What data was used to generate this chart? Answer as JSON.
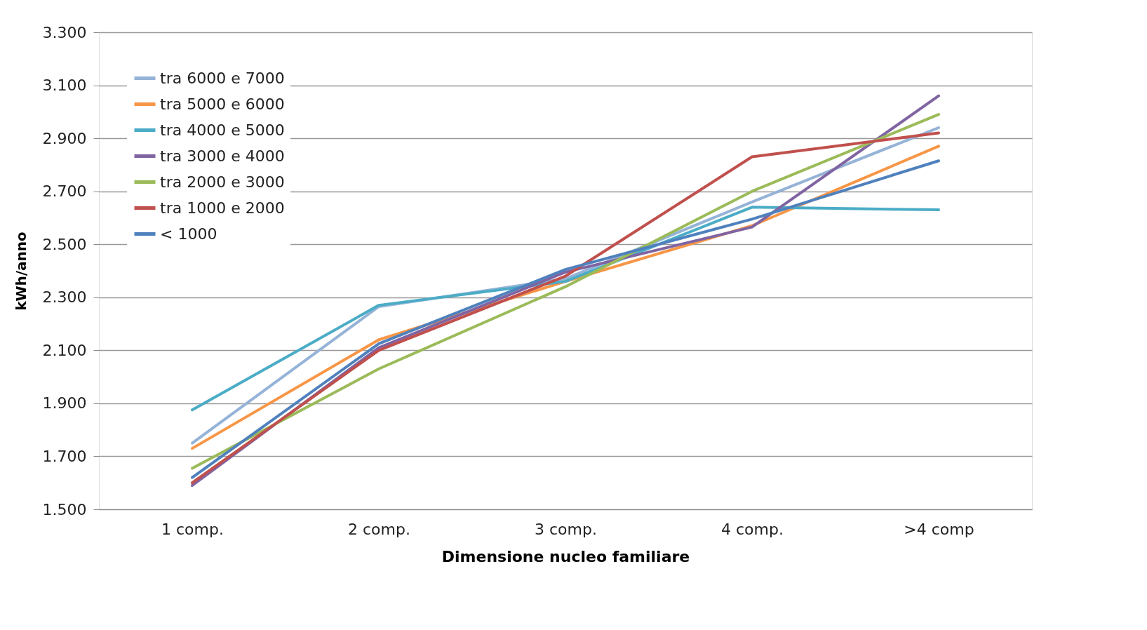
{
  "chart_data": {
    "type": "line",
    "xlabel": "Dimensione nucleo familiare",
    "ylabel": "kWh/anno",
    "categories": [
      "1 comp.",
      "2 comp.",
      "3 comp.",
      "4 comp.",
      ">4 comp"
    ],
    "series": [
      {
        "name": "tra 6000 e 7000",
        "color": "#95b3d7",
        "values": [
          1750,
          2265,
          2370,
          2660,
          2940
        ]
      },
      {
        "name": "tra 5000 e 6000",
        "color": "#f79646",
        "values": [
          1730,
          2140,
          2360,
          2570,
          2870
        ]
      },
      {
        "name": "tra 4000 e 5000",
        "color": "#4bacc6",
        "values": [
          1875,
          2270,
          2360,
          2640,
          2630
        ]
      },
      {
        "name": "tra 3000 e 4000",
        "color": "#8064a2",
        "values": [
          1590,
          2110,
          2395,
          2565,
          3060
        ]
      },
      {
        "name": "tra 2000 e 3000",
        "color": "#9bbb59",
        "values": [
          1655,
          2030,
          2340,
          2700,
          2990
        ]
      },
      {
        "name": "tra 1000 e 2000",
        "color": "#c0504d",
        "values": [
          1600,
          2100,
          2380,
          2830,
          2920
        ]
      },
      {
        "name": "< 1000",
        "color": "#4f81bd",
        "values": [
          1620,
          2125,
          2405,
          2595,
          2815
        ]
      }
    ],
    "ylim": [
      1500,
      3300
    ],
    "yticks": [
      {
        "value": 1500,
        "label": "1.500"
      },
      {
        "value": 1700,
        "label": "1.700"
      },
      {
        "value": 1900,
        "label": "1.900"
      },
      {
        "value": 2100,
        "label": "2.100"
      },
      {
        "value": 2300,
        "label": "2.300"
      },
      {
        "value": 2500,
        "label": "2.500"
      },
      {
        "value": 2700,
        "label": "2.700"
      },
      {
        "value": 2900,
        "label": "2.900"
      },
      {
        "value": 3100,
        "label": "3.100"
      },
      {
        "value": 3300,
        "label": "3.300"
      }
    ],
    "grid": "y",
    "legend": "top left",
    "marker": "none",
    "line_style": "solid"
  }
}
